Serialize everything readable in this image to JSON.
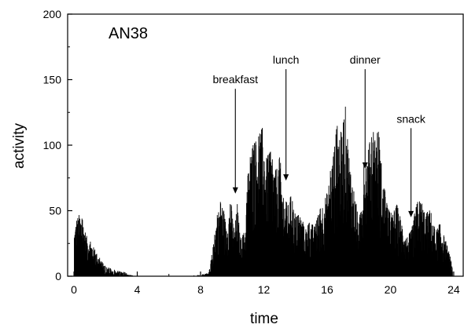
{
  "chart_data": {
    "type": "bar",
    "title": "AN38",
    "xlabel": "time",
    "ylabel": "activity",
    "xlim": [
      -0.4,
      24.6
    ],
    "ylim": [
      0,
      200
    ],
    "xticks": [
      0,
      4,
      8,
      12,
      16,
      20,
      24
    ],
    "yticks": [
      0,
      50,
      100,
      150,
      200
    ],
    "grid": false,
    "legend": "none",
    "color": "#000000",
    "envelope": {
      "note_units": "x in hours, y in activity counts",
      "x": [
        0,
        0.15,
        0.35,
        0.55,
        0.8,
        1.1,
        1.4,
        1.8,
        2.1,
        2.5,
        2.9,
        3.2,
        3.5,
        4,
        5,
        6,
        7,
        8,
        8.5,
        8.8,
        9.0,
        9.3,
        9.6,
        9.9,
        10.1,
        10.3,
        10.5,
        10.8,
        11.0,
        11.3,
        11.6,
        11.9,
        12.1,
        12.4,
        12.7,
        13.0,
        13.2,
        13.5,
        13.7,
        14.0,
        14.3,
        14.6,
        14.9,
        15.2,
        15.5,
        15.8,
        16.0,
        16.3,
        16.6,
        16.9,
        17.1,
        17.4,
        17.7,
        18.0,
        18.3,
        18.6,
        18.9,
        19.2,
        19.5,
        19.8,
        20.1,
        20.4,
        20.7,
        21.0,
        21.3,
        21.6,
        21.9,
        22.2,
        22.5,
        22.8,
        23.1,
        23.4,
        23.7,
        24.0
      ],
      "y": [
        35,
        45,
        48,
        42,
        30,
        25,
        18,
        10,
        7,
        5,
        4,
        3,
        1,
        0,
        0,
        0,
        0,
        1,
        3,
        25,
        45,
        60,
        40,
        58,
        35,
        55,
        28,
        35,
        85,
        100,
        105,
        115,
        90,
        95,
        80,
        92,
        60,
        55,
        62,
        45,
        48,
        35,
        42,
        38,
        50,
        60,
        65,
        90,
        115,
        110,
        135,
        90,
        65,
        40,
        85,
        100,
        110,
        115,
        75,
        52,
        47,
        55,
        42,
        30,
        35,
        55,
        60,
        48,
        52,
        35,
        40,
        30,
        18,
        0
      ]
    },
    "annotations": [
      {
        "label": "breakfast",
        "x": 10.2,
        "arrow_from": 143,
        "arrow_to": 63
      },
      {
        "label": "lunch",
        "x": 13.4,
        "arrow_from": 158,
        "arrow_to": 73
      },
      {
        "label": "dinner",
        "x": 18.4,
        "arrow_from": 158,
        "arrow_to": 82
      },
      {
        "label": "snack",
        "x": 21.3,
        "arrow_from": 113,
        "arrow_to": 45
      }
    ]
  }
}
